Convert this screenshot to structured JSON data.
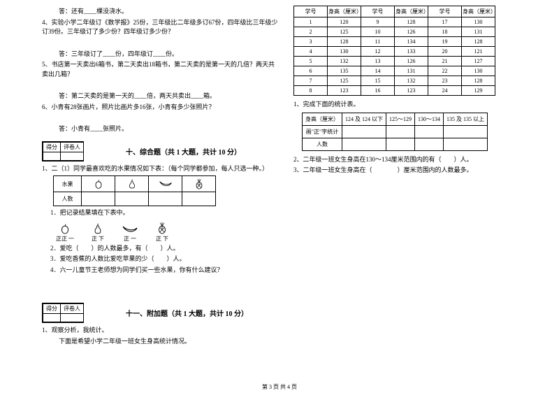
{
  "left": {
    "q3_ans": "答：还有____棵没浇水。",
    "q4": "4、实验小学二年级订《数学报》25份，三年级比二年级多订67份，四年级比三年级少订39份。三年级订了多少份？四年级订多少份？",
    "q4_ans": "答：三年级订了____份，四年级订____份。",
    "q5": "5、书店第一天卖出6箱书，第二天卖出18箱书，第二天卖的是第一天的几倍？两天共卖出几箱？",
    "q5_ans": "答：第二天卖的是第一天的____倍，两天共卖出____箱。",
    "q6": "6、小青有28张画片，照片比画片多16张，小青有多少张照片？",
    "q6_ans": "答：小青有____张照片。",
    "score_l": "得分",
    "score_r": "评卷人",
    "sec10": "十、综合题（共 1 大题，共计 10 分）",
    "c1": "1、二（1）同学最喜欢吃的水果情况如下表：（每个同学都参加，每人只选一种。）",
    "fruit_label": "水果",
    "count_label": "人数",
    "c1_1": "1．把记录结果填在下表中。",
    "tally1": "正正 一",
    "tally2": "正 下",
    "tally3": "正 一",
    "tally4": "正 下",
    "c1_2": "2．爱吃（　　）的人数最多，有（　　）人。",
    "c1_3": "3．爱吃香蕉的人数比爱吃苹果的少（　　）人。",
    "c1_4": "4．六一儿童节王老师想为同学们买一些水果，你有什么建议？",
    "sec11": "十一、附加题（共 1 大题，共计 10 分）",
    "a1": "1、观察分析，我统计。",
    "a1_sub": "下面是希望小学二年级一班女生身高统计情况。"
  },
  "right": {
    "th_id": "学号",
    "th_h": "身高（厘米）",
    "rows": [
      [
        "1",
        "120",
        "9",
        "128",
        "17",
        "130"
      ],
      [
        "2",
        "125",
        "10",
        "126",
        "18",
        "131"
      ],
      [
        "3",
        "128",
        "11",
        "134",
        "19",
        "128"
      ],
      [
        "4",
        "130",
        "12",
        "133",
        "20",
        "121"
      ],
      [
        "5",
        "132",
        "13",
        "126",
        "21",
        "127"
      ],
      [
        "6",
        "135",
        "14",
        "131",
        "22",
        "130"
      ],
      [
        "7",
        "125",
        "15",
        "132",
        "23",
        "128"
      ],
      [
        "8",
        "123",
        "16",
        "123",
        "24",
        "129"
      ]
    ],
    "r1": "1、完成下面的统计表。",
    "st_h": "身高（厘米）",
    "st_c1": "124 及 124 以下",
    "st_c2": "125～129",
    "st_c3": "130～134",
    "st_c4": "135 及 135 以上",
    "st_tally": "画\"正\"字统计",
    "st_count": "人数",
    "r2": "2、二年级一班女生身高在130～134厘米范围内的有（　　）人。",
    "r3": "3、二年级一班女生身高在（　　　　）厘米范围内的人数最多。"
  },
  "footer": "第 3 页 共 4 页"
}
